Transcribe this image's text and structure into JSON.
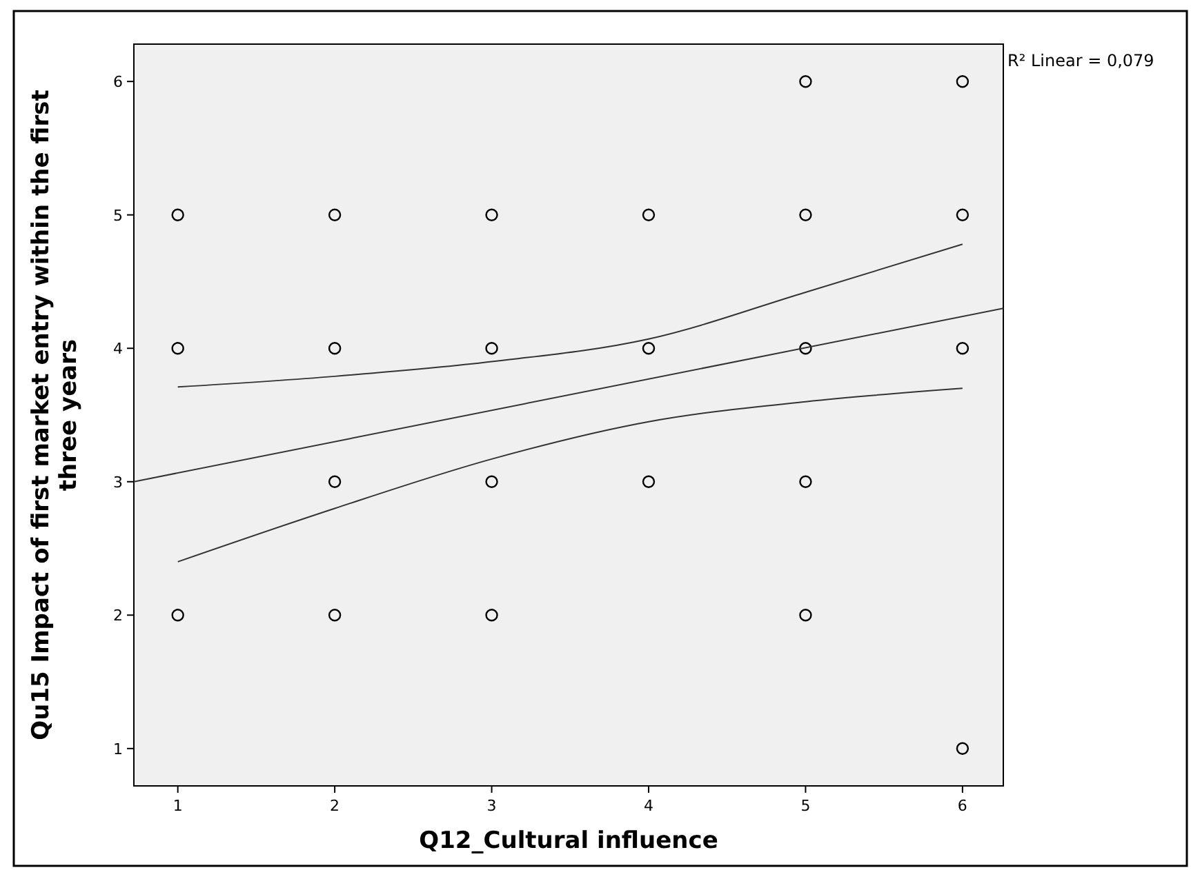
{
  "chart_data": {
    "type": "scatter",
    "xlabel": "Q12_Cultural influence",
    "ylabel": "Qu15 Impact of first market entry within the first three years",
    "xlim": [
      0.72,
      6.26
    ],
    "ylim": [
      0.72,
      6.28
    ],
    "xticks": [
      1,
      2,
      3,
      4,
      5,
      6
    ],
    "yticks": [
      1,
      2,
      3,
      4,
      5,
      6
    ],
    "grid": false,
    "marker": "circle",
    "annotations": [
      "R² Linear = 0,079"
    ],
    "series": [
      {
        "color": "#000000",
        "x": [
          1,
          1,
          1,
          2,
          2,
          2,
          2,
          3,
          3,
          3,
          3,
          4,
          4,
          4,
          5,
          5,
          5,
          5,
          5,
          6,
          6,
          6,
          6
        ],
        "values": [
          5,
          4,
          2,
          5,
          4,
          3,
          2,
          5,
          4,
          3,
          2,
          5,
          4,
          3,
          6,
          5,
          4,
          3,
          2,
          6,
          5,
          4,
          1
        ]
      },
      {
        "type": "line",
        "color": "#333333",
        "marker": "none",
        "x": [
          0.72,
          6.26
        ],
        "values": [
          3.0,
          4.3
        ]
      },
      {
        "type": "line",
        "color": "#333333",
        "marker": "none",
        "x": [
          1,
          2,
          3,
          4,
          5,
          6
        ],
        "values": [
          3.71,
          3.79,
          3.9,
          4.07,
          4.42,
          4.78
        ]
      },
      {
        "type": "line",
        "color": "#333333",
        "marker": "none",
        "x": [
          1,
          2,
          3,
          4,
          5,
          6
        ],
        "values": [
          2.4,
          2.8,
          3.17,
          3.45,
          3.6,
          3.7
        ]
      }
    ]
  }
}
